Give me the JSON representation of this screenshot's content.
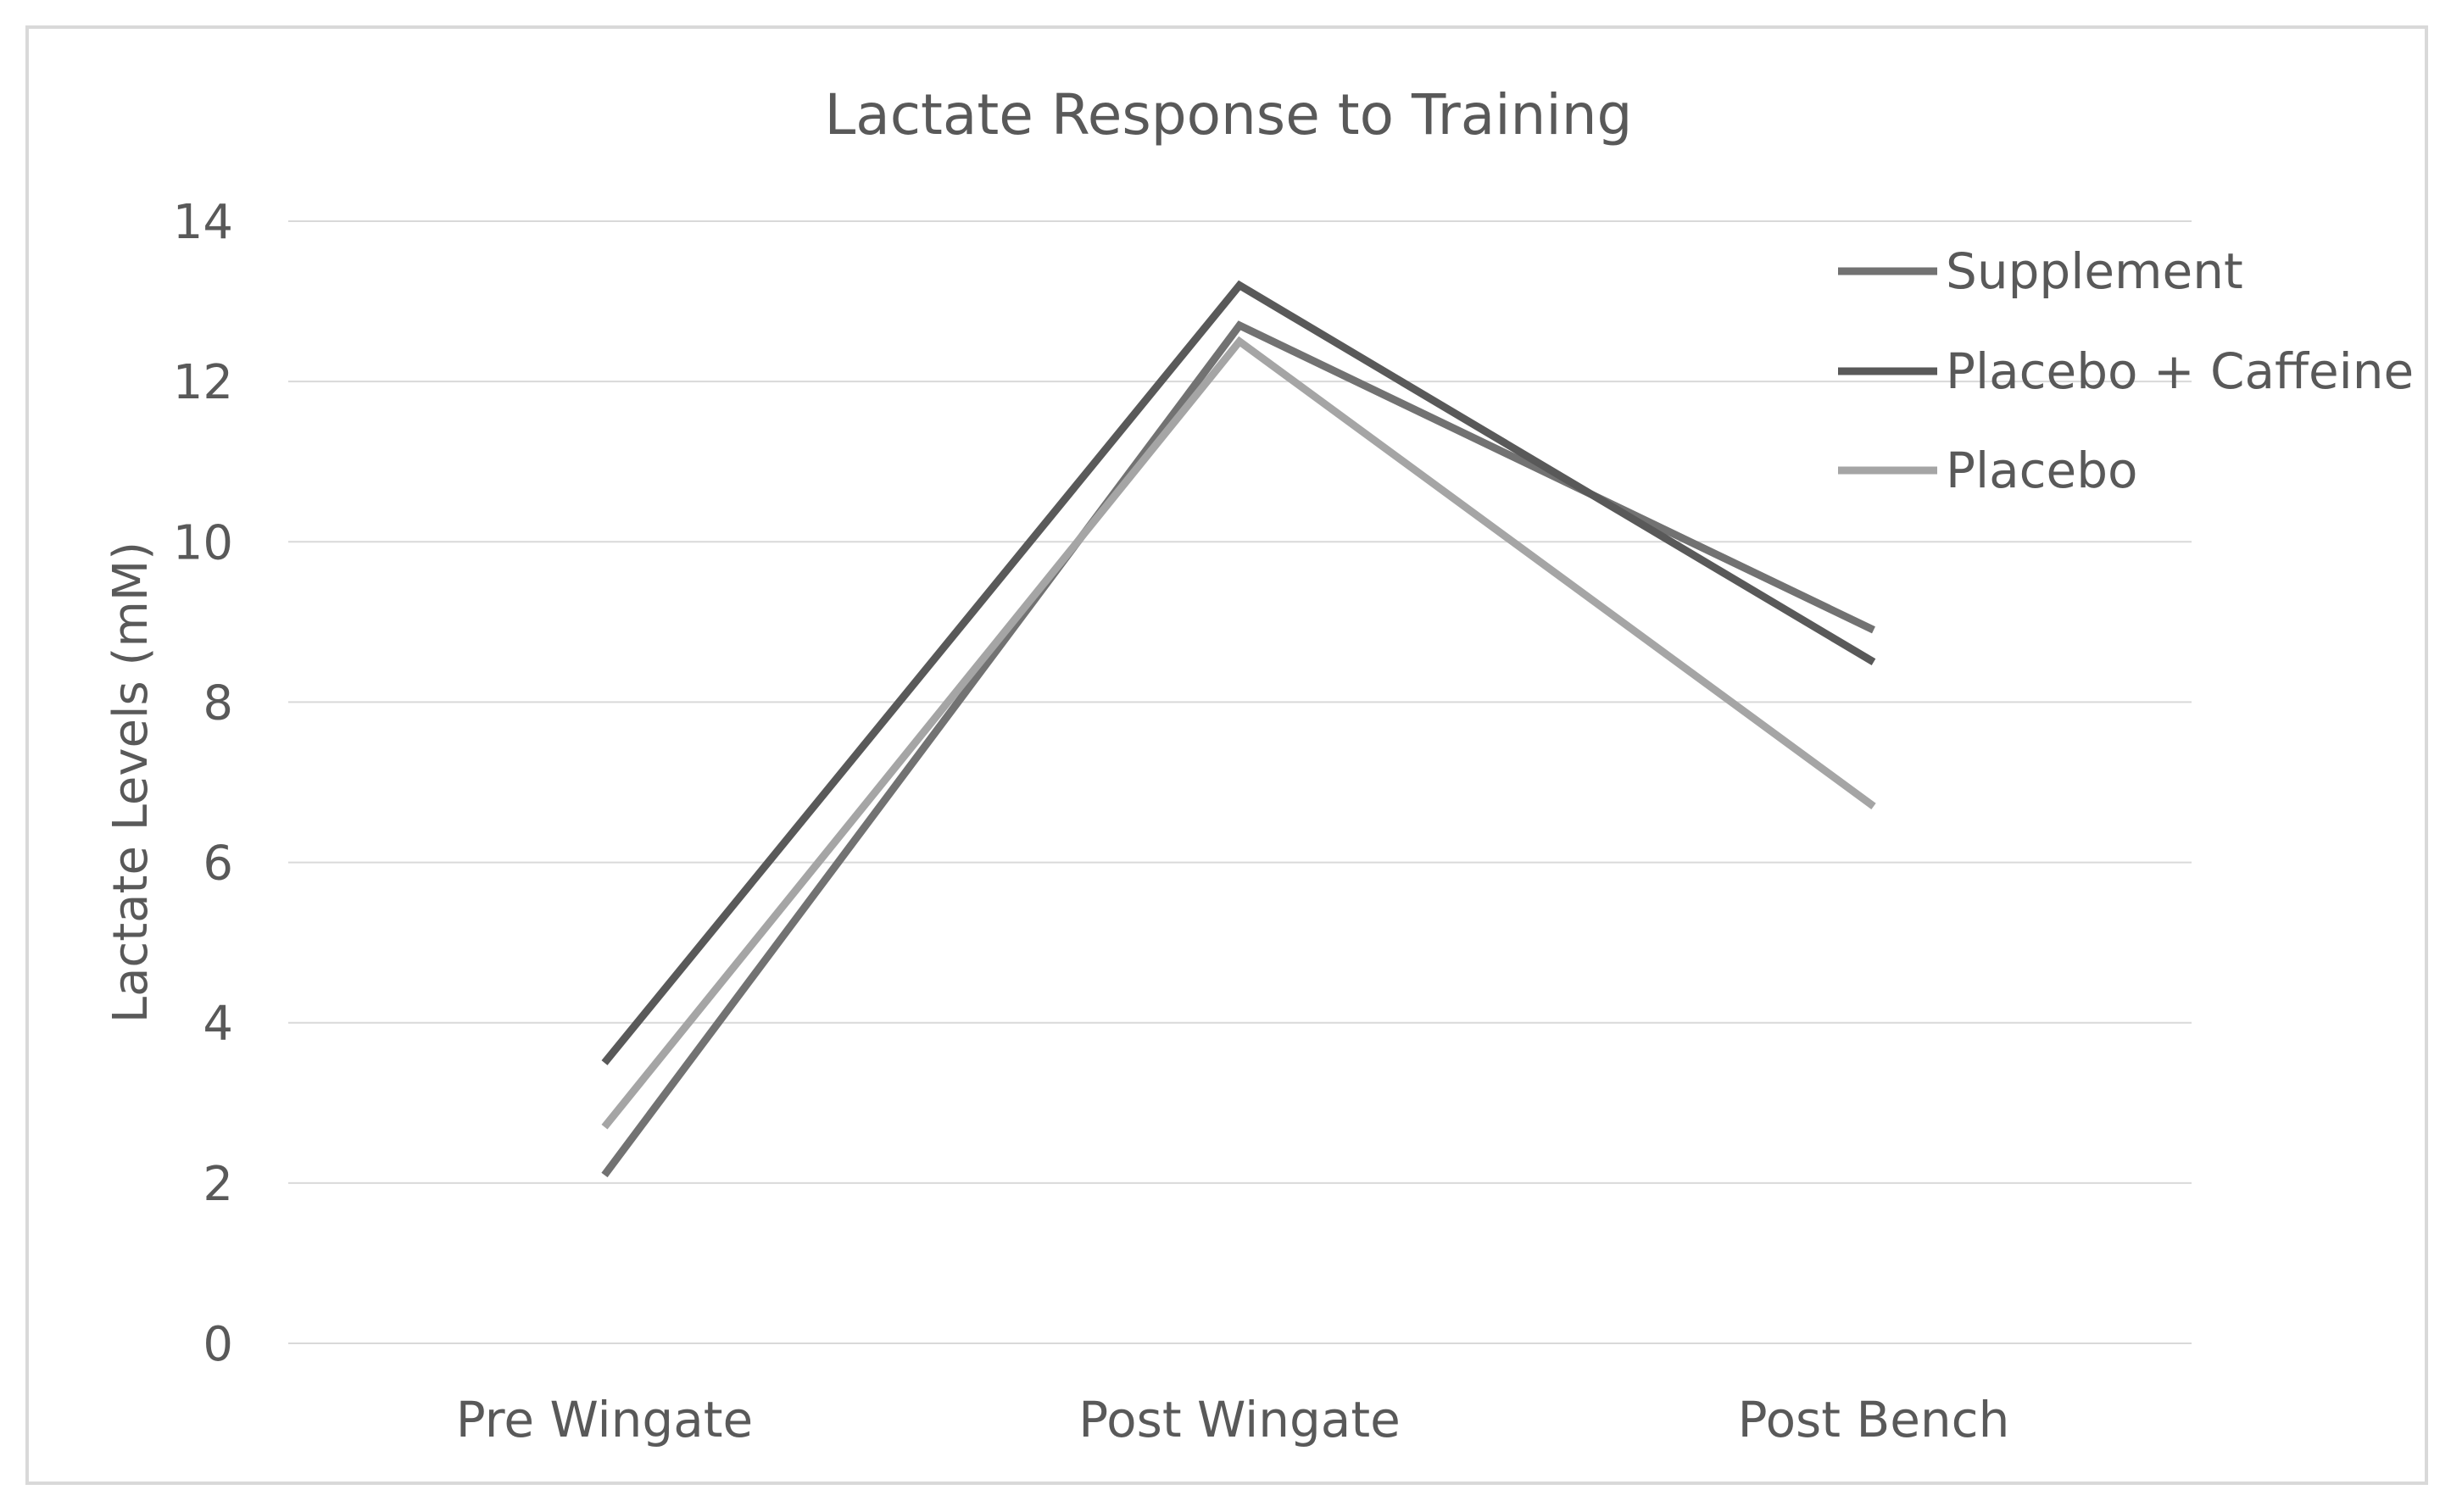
{
  "chart_data": {
    "type": "line",
    "title": "Lactate Response to Training",
    "xlabel": "",
    "ylabel": "Lactate Levels (mM)",
    "categories": [
      "Pre Wingate",
      "Post Wingate",
      "Post Bench"
    ],
    "ylim": [
      0,
      14
    ],
    "yticks": [
      0,
      2,
      4,
      6,
      8,
      10,
      12,
      14
    ],
    "grid": true,
    "legend_position": "top-right",
    "series": [
      {
        "name": "Supplement",
        "values": [
          2.1,
          12.7,
          8.9
        ],
        "color": "#727272"
      },
      {
        "name": "Placebo + Caffeine",
        "values": [
          3.5,
          13.2,
          8.5
        ],
        "color": "#595959"
      },
      {
        "name": "Placebo",
        "values": [
          2.7,
          12.5,
          6.7
        ],
        "color": "#a5a5a5"
      }
    ],
    "frame_color": "#d9d9d9",
    "gridline_color": "#d9d9d9"
  }
}
